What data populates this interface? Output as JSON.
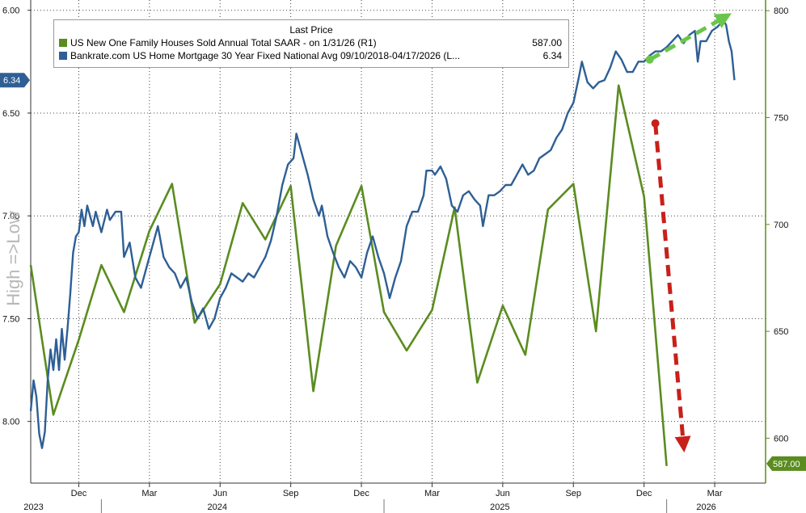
{
  "chart_data": {
    "type": "line",
    "legend": {
      "title": "Last Price",
      "placement": "top-left",
      "entries": [
        {
          "name": "US New One Family Houses Sold Annual Total SAAR -  on 1/31/26  (R1)",
          "value": "587.00",
          "color": "#5a8c1f"
        },
        {
          "name": "Bankrate.com US Home Mortgage 30 Year Fixed National Avg 09/10/2018-04/17/2026   (L...",
          "value": "6.34",
          "color": "#2e5f95"
        }
      ]
    },
    "y_left": {
      "label": "High =>Low",
      "inverted": true,
      "range": [
        5.95,
        8.3
      ],
      "ticks": [
        "6.00",
        "6.50",
        "7.00",
        "7.50",
        "8.00"
      ],
      "last_value_badge": "6.34"
    },
    "y_right": {
      "range": [
        579,
        805
      ],
      "ticks": [
        "800",
        "750",
        "700",
        "650",
        "600"
      ],
      "last_value_badge": "587.00"
    },
    "x_axis": {
      "month_ticks": [
        {
          "label": "Dec",
          "t": 2023.92
        },
        {
          "label": "Mar",
          "t": 2024.17
        },
        {
          "label": "Jun",
          "t": 2024.42
        },
        {
          "label": "Sep",
          "t": 2024.67
        },
        {
          "label": "Dec",
          "t": 2024.92
        },
        {
          "label": "Mar",
          "t": 2025.17
        },
        {
          "label": "Jun",
          "t": 2025.42
        },
        {
          "label": "Sep",
          "t": 2025.67
        },
        {
          "label": "Dec",
          "t": 2025.92
        },
        {
          "label": "Mar",
          "t": 2026.17
        }
      ],
      "year_labels": [
        {
          "label": "2023",
          "t": 2023.76
        },
        {
          "label": "2024",
          "t": 2024.41
        },
        {
          "label": "2025",
          "t": 2025.41
        },
        {
          "label": "2026",
          "t": 2026.14
        }
      ],
      "year_boundaries": [
        2024.0,
        2025.0,
        2026.0
      ],
      "range": [
        2023.75,
        2026.35
      ]
    },
    "grid": true,
    "series": [
      {
        "name": "US New One Family Houses Sold Annual Total SAAR",
        "axis": "right",
        "color": "#5a8c1f",
        "points": [
          [
            2023.75,
            681
          ],
          [
            2023.83,
            611
          ],
          [
            2023.92,
            646
          ],
          [
            2024.0,
            681
          ],
          [
            2024.08,
            659
          ],
          [
            2024.17,
            697
          ],
          [
            2024.25,
            719
          ],
          [
            2024.33,
            654
          ],
          [
            2024.42,
            672
          ],
          [
            2024.5,
            710
          ],
          [
            2024.58,
            693
          ],
          [
            2024.67,
            718
          ],
          [
            2024.75,
            622
          ],
          [
            2024.83,
            690
          ],
          [
            2024.92,
            718
          ],
          [
            2025.0,
            659
          ],
          [
            2025.08,
            641
          ],
          [
            2025.17,
            660
          ],
          [
            2025.25,
            708
          ],
          [
            2025.33,
            626
          ],
          [
            2025.42,
            662
          ],
          [
            2025.5,
            639
          ],
          [
            2025.58,
            707
          ],
          [
            2025.67,
            719
          ],
          [
            2025.75,
            650
          ],
          [
            2025.83,
            765
          ],
          [
            2025.92,
            713
          ],
          [
            2026.0,
            587
          ]
        ]
      },
      {
        "name": "Bankrate.com US Home Mortgage 30 Year Fixed National Avg",
        "axis": "left",
        "color": "#2e5f95",
        "points": [
          [
            2023.75,
            7.95
          ],
          [
            2023.76,
            7.8
          ],
          [
            2023.77,
            7.88
          ],
          [
            2023.78,
            8.06
          ],
          [
            2023.79,
            8.13
          ],
          [
            2023.8,
            8.05
          ],
          [
            2023.81,
            7.8
          ],
          [
            2023.82,
            7.65
          ],
          [
            2023.83,
            7.75
          ],
          [
            2023.84,
            7.6
          ],
          [
            2023.85,
            7.75
          ],
          [
            2023.86,
            7.55
          ],
          [
            2023.87,
            7.7
          ],
          [
            2023.88,
            7.55
          ],
          [
            2023.89,
            7.38
          ],
          [
            2023.9,
            7.18
          ],
          [
            2023.91,
            7.1
          ],
          [
            2023.92,
            7.08
          ],
          [
            2023.93,
            6.97
          ],
          [
            2023.94,
            7.05
          ],
          [
            2023.95,
            6.95
          ],
          [
            2023.97,
            7.05
          ],
          [
            2023.98,
            6.98
          ],
          [
            2024.0,
            7.08
          ],
          [
            2024.02,
            6.97
          ],
          [
            2024.03,
            7.02
          ],
          [
            2024.05,
            6.98
          ],
          [
            2024.07,
            6.98
          ],
          [
            2024.08,
            7.2
          ],
          [
            2024.1,
            7.13
          ],
          [
            2024.12,
            7.3
          ],
          [
            2024.14,
            7.35
          ],
          [
            2024.16,
            7.25
          ],
          [
            2024.18,
            7.15
          ],
          [
            2024.2,
            7.05
          ],
          [
            2024.22,
            7.2
          ],
          [
            2024.24,
            7.25
          ],
          [
            2024.26,
            7.28
          ],
          [
            2024.28,
            7.35
          ],
          [
            2024.3,
            7.3
          ],
          [
            2024.32,
            7.42
          ],
          [
            2024.34,
            7.5
          ],
          [
            2024.36,
            7.45
          ],
          [
            2024.38,
            7.55
          ],
          [
            2024.4,
            7.5
          ],
          [
            2024.42,
            7.4
          ],
          [
            2024.44,
            7.35
          ],
          [
            2024.46,
            7.28
          ],
          [
            2024.48,
            7.3
          ],
          [
            2024.5,
            7.32
          ],
          [
            2024.52,
            7.28
          ],
          [
            2024.54,
            7.3
          ],
          [
            2024.56,
            7.25
          ],
          [
            2024.58,
            7.2
          ],
          [
            2024.6,
            7.12
          ],
          [
            2024.62,
            7.0
          ],
          [
            2024.64,
            6.85
          ],
          [
            2024.66,
            6.75
          ],
          [
            2024.68,
            6.72
          ],
          [
            2024.69,
            6.6
          ],
          [
            2024.71,
            6.7
          ],
          [
            2024.73,
            6.8
          ],
          [
            2024.75,
            6.92
          ],
          [
            2024.77,
            7.0
          ],
          [
            2024.78,
            6.95
          ],
          [
            2024.8,
            7.1
          ],
          [
            2024.82,
            7.18
          ],
          [
            2024.84,
            7.25
          ],
          [
            2024.86,
            7.3
          ],
          [
            2024.88,
            7.22
          ],
          [
            2024.9,
            7.25
          ],
          [
            2024.92,
            7.3
          ],
          [
            2024.94,
            7.18
          ],
          [
            2024.96,
            7.1
          ],
          [
            2024.98,
            7.2
          ],
          [
            2025.0,
            7.28
          ],
          [
            2025.02,
            7.4
          ],
          [
            2025.04,
            7.3
          ],
          [
            2025.06,
            7.22
          ],
          [
            2025.08,
            7.05
          ],
          [
            2025.1,
            6.98
          ],
          [
            2025.12,
            6.98
          ],
          [
            2025.14,
            6.9
          ],
          [
            2025.15,
            6.78
          ],
          [
            2025.17,
            6.78
          ],
          [
            2025.18,
            6.8
          ],
          [
            2025.2,
            6.76
          ],
          [
            2025.22,
            6.82
          ],
          [
            2025.24,
            6.95
          ],
          [
            2025.26,
            6.98
          ],
          [
            2025.28,
            6.9
          ],
          [
            2025.3,
            6.88
          ],
          [
            2025.32,
            6.92
          ],
          [
            2025.34,
            6.95
          ],
          [
            2025.35,
            7.05
          ],
          [
            2025.37,
            6.9
          ],
          [
            2025.39,
            6.9
          ],
          [
            2025.41,
            6.88
          ],
          [
            2025.43,
            6.85
          ],
          [
            2025.45,
            6.85
          ],
          [
            2025.47,
            6.8
          ],
          [
            2025.49,
            6.75
          ],
          [
            2025.51,
            6.8
          ],
          [
            2025.53,
            6.78
          ],
          [
            2025.55,
            6.72
          ],
          [
            2025.57,
            6.7
          ],
          [
            2025.59,
            6.68
          ],
          [
            2025.61,
            6.62
          ],
          [
            2025.63,
            6.58
          ],
          [
            2025.65,
            6.5
          ],
          [
            2025.67,
            6.45
          ],
          [
            2025.69,
            6.32
          ],
          [
            2025.7,
            6.25
          ],
          [
            2025.72,
            6.35
          ],
          [
            2025.74,
            6.38
          ],
          [
            2025.76,
            6.35
          ],
          [
            2025.78,
            6.34
          ],
          [
            2025.8,
            6.28
          ],
          [
            2025.82,
            6.2
          ],
          [
            2025.84,
            6.24
          ],
          [
            2025.86,
            6.3
          ],
          [
            2025.88,
            6.3
          ],
          [
            2025.9,
            6.25
          ],
          [
            2025.92,
            6.25
          ],
          [
            2025.94,
            6.22
          ],
          [
            2025.96,
            6.2
          ],
          [
            2025.98,
            6.2
          ],
          [
            2026.0,
            6.18
          ],
          [
            2026.02,
            6.15
          ],
          [
            2026.04,
            6.12
          ],
          [
            2026.06,
            6.16
          ],
          [
            2026.08,
            6.12
          ],
          [
            2026.1,
            6.1
          ],
          [
            2026.11,
            6.25
          ],
          [
            2026.12,
            6.15
          ],
          [
            2026.14,
            6.15
          ],
          [
            2026.16,
            6.1
          ],
          [
            2026.18,
            6.08
          ],
          [
            2026.2,
            6.05
          ],
          [
            2026.21,
            6.07
          ],
          [
            2026.22,
            6.15
          ],
          [
            2026.23,
            6.2
          ],
          [
            2026.24,
            6.34
          ]
        ]
      }
    ],
    "annotations": [
      {
        "type": "dashed-arrow",
        "color": "#6ac64a",
        "from": [
          2025.94,
          6.24
        ],
        "to": [
          2026.21,
          6.03
        ],
        "axis": "left"
      },
      {
        "type": "dashed-arrow",
        "color": "#c8201a",
        "from": [
          2025.96,
          6.55
        ],
        "to": [
          2026.06,
          8.12
        ],
        "axis": "left"
      }
    ]
  }
}
